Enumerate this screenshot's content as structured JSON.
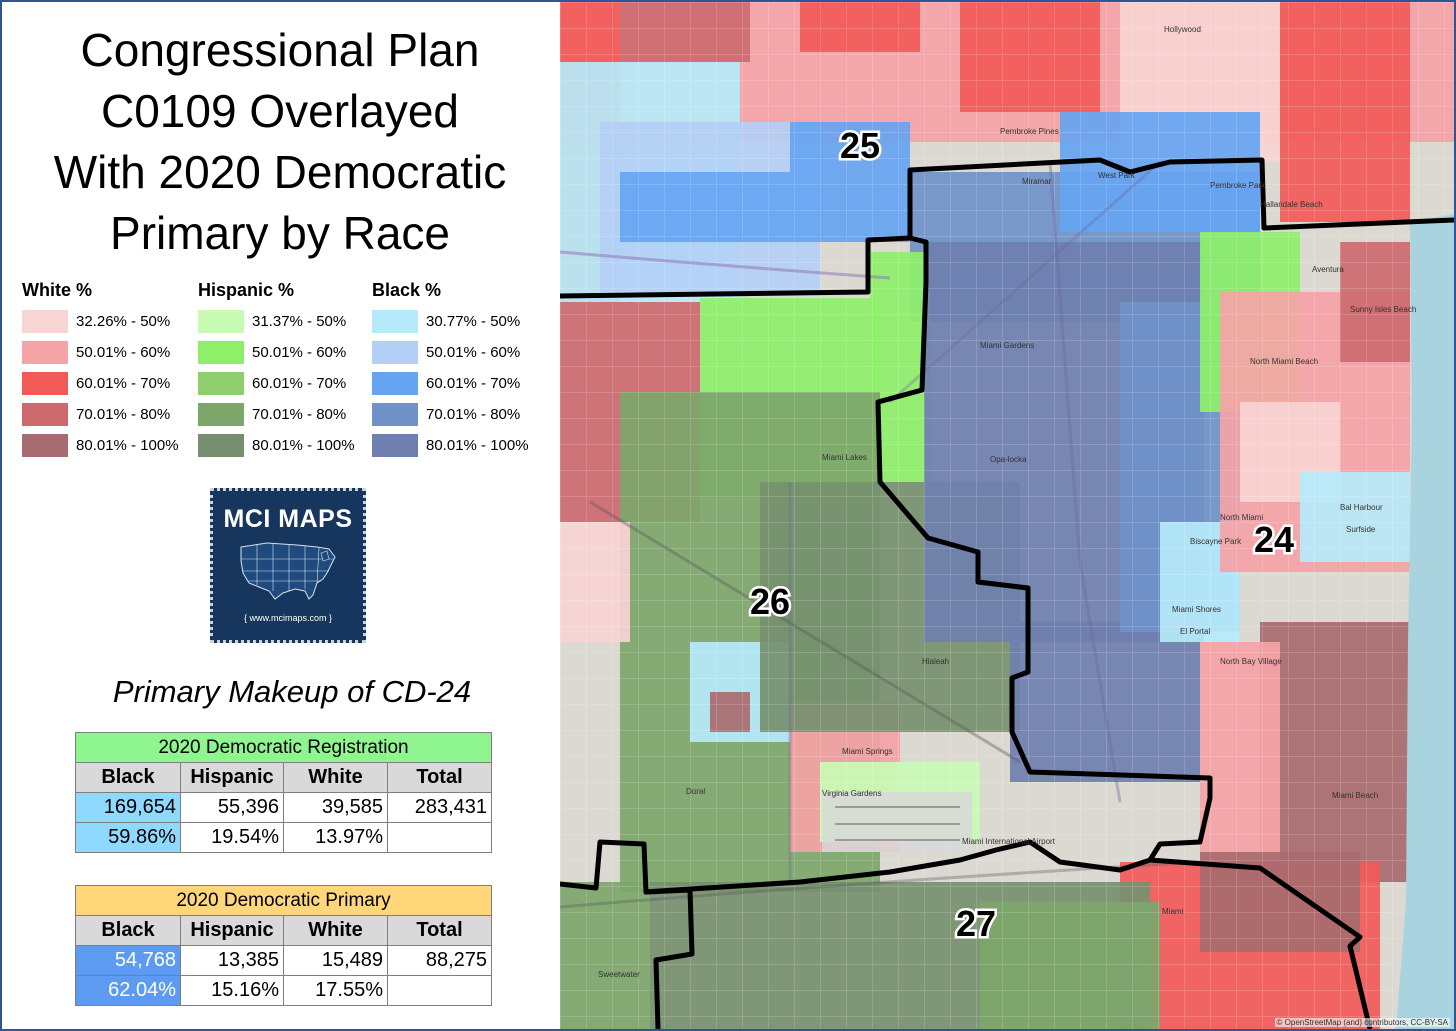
{
  "title": {
    "line1": "Congressional Plan",
    "line2": "C0109 Overlayed",
    "line3": "With 2020 Democratic",
    "line4": "Primary by Race"
  },
  "legend": [
    {
      "group": "White %",
      "items": [
        {
          "label": "32.26% - 50%",
          "color": "#f9d4d4"
        },
        {
          "label": "50.01% - 60%",
          "color": "#f5a3a6"
        },
        {
          "label": "60.01% - 70%",
          "color": "#f25a5a"
        },
        {
          "label": "70.01% - 80%",
          "color": "#cc6a70"
        },
        {
          "label": "80.01% - 100%",
          "color": "#a86b6f"
        }
      ]
    },
    {
      "group": "Hispanic %",
      "items": [
        {
          "label": "31.37% - 50%",
          "color": "#c8fcb4"
        },
        {
          "label": "50.01% - 60%",
          "color": "#8ef06a"
        },
        {
          "label": "60.01% - 70%",
          "color": "#8fce6c"
        },
        {
          "label": "70.01% - 80%",
          "color": "#7da66b"
        },
        {
          "label": "80.01% - 100%",
          "color": "#76906f"
        }
      ]
    },
    {
      "group": "Black %",
      "items": [
        {
          "label": "30.77% - 50%",
          "color": "#b6eafa"
        },
        {
          "label": "50.01% - 60%",
          "color": "#b3cff5"
        },
        {
          "label": "60.01% - 70%",
          "color": "#66a4f2"
        },
        {
          "label": "70.01% - 80%",
          "color": "#6f93c9"
        },
        {
          "label": "80.01% - 100%",
          "color": "#6f7faf"
        }
      ]
    }
  ],
  "logo": {
    "title": "MCI MAPS",
    "url": "{ www.mcimaps.com }"
  },
  "makeup_title": "Primary Makeup of CD-24",
  "registration": {
    "header": "2020 Democratic Registration",
    "columns": [
      "Black",
      "Hispanic",
      "White",
      "Total"
    ],
    "counts": [
      "169,654",
      "55,396",
      "39,585",
      "283,431"
    ],
    "percents": [
      "59.86%",
      "19.54%",
      "13.97%",
      ""
    ]
  },
  "primary": {
    "header": "2020 Democratic Primary",
    "columns": [
      "Black",
      "Hispanic",
      "White",
      "Total"
    ],
    "counts": [
      "54,768",
      "13,385",
      "15,489",
      "88,275"
    ],
    "percents": [
      "62.04%",
      "15.16%",
      "17.55%",
      ""
    ]
  },
  "map": {
    "districts": [
      "25",
      "26",
      "24",
      "27"
    ],
    "places": [
      "Pembroke Pines",
      "Miramar",
      "West Park",
      "Pembroke Park",
      "Hallandale Beach",
      "Hollywood",
      "Aventura",
      "Sunny Isles Beach",
      "North Miami Beach",
      "Miami Gardens",
      "Miami Lakes",
      "Opa-locka",
      "North Miami",
      "Bal Harbour",
      "Surfside",
      "Biscayne Park",
      "Miami Shores",
      "El Portal",
      "North Bay Village",
      "Hialeah",
      "Miami Springs",
      "Virginia Gardens",
      "Doral",
      "Miami International Airport",
      "Miami Beach",
      "Sweetwater",
      "Miami"
    ],
    "attribution": "© OpenStreetMap (and) contributors, CC-BY-SA"
  }
}
